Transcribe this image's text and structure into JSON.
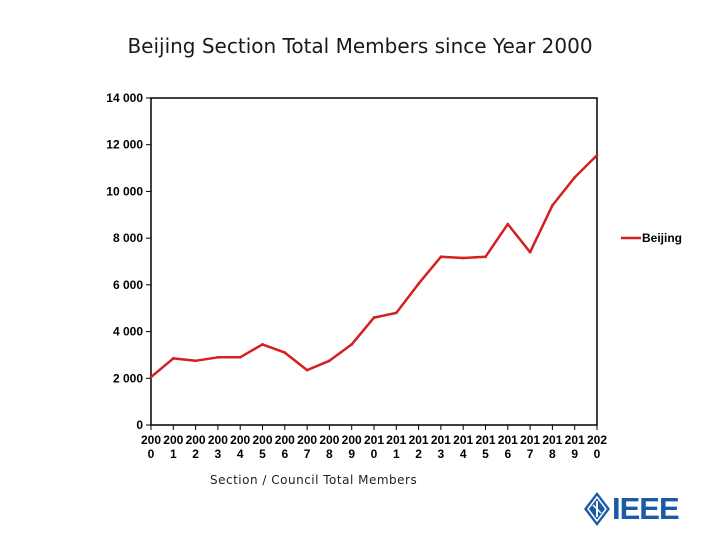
{
  "chart_data": {
    "type": "line",
    "title": "Beijing Section Total Members since Year 2000",
    "xlabel": "Section / Council Total Members",
    "ylabel": "",
    "ylim": [
      0,
      14000
    ],
    "yticks": [
      0,
      2000,
      4000,
      6000,
      8000,
      10000,
      12000,
      14000
    ],
    "ytick_labels": [
      "0",
      "2 000",
      "4 000",
      "6 000",
      "8 000",
      "10 000",
      "12 000",
      "14 000"
    ],
    "categories": [
      "2000",
      "2001",
      "2002",
      "2003",
      "2004",
      "2005",
      "2006",
      "2007",
      "2008",
      "2009",
      "2010",
      "2011",
      "2012",
      "2013",
      "2014",
      "2015",
      "2016",
      "2017",
      "2018",
      "2019",
      "2020"
    ],
    "tick_label_lines": [
      [
        "200",
        "0"
      ],
      [
        "200",
        "1"
      ],
      [
        "200",
        "2"
      ],
      [
        "200",
        "3"
      ],
      [
        "200",
        "4"
      ],
      [
        "200",
        "5"
      ],
      [
        "200",
        "6"
      ],
      [
        "200",
        "7"
      ],
      [
        "200",
        "8"
      ],
      [
        "200",
        "9"
      ],
      [
        "201",
        "0"
      ],
      [
        "201",
        "1"
      ],
      [
        "201",
        "2"
      ],
      [
        "201",
        "3"
      ],
      [
        "201",
        "4"
      ],
      [
        "201",
        "5"
      ],
      [
        "201",
        "6"
      ],
      [
        "201",
        "7"
      ],
      [
        "201",
        "8"
      ],
      [
        "201",
        "9"
      ],
      [
        "202",
        "0"
      ]
    ],
    "series": [
      {
        "name": "Beijing",
        "color": "#d42020",
        "values": [
          2050,
          2850,
          2750,
          2900,
          2900,
          3450,
          3100,
          2350,
          2750,
          3450,
          4600,
          4800,
          6050,
          7200,
          7150,
          7200,
          8600,
          7400,
          9400,
          10600,
          11550
        ]
      }
    ],
    "legend_position": "right",
    "grid": false
  },
  "logo": {
    "text": "IEEE",
    "color": "#1b5ba6"
  }
}
